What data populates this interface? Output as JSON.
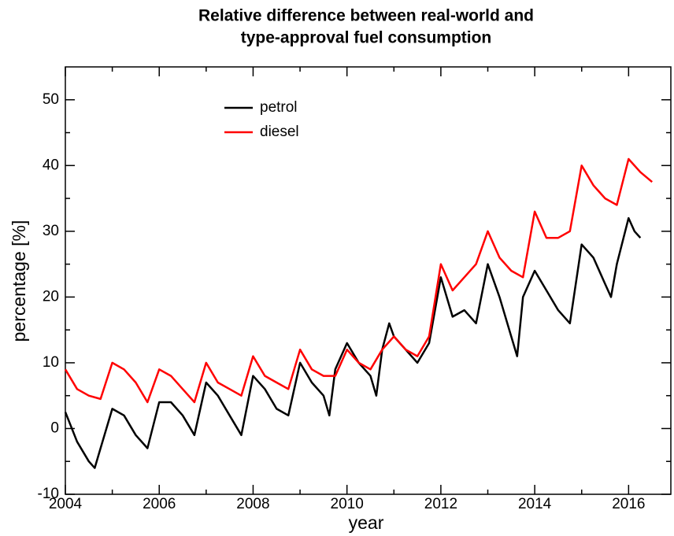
{
  "chart_data": {
    "type": "line",
    "title": [
      "Relative difference between real-world and",
      "type-approval fuel consumption"
    ],
    "xlabel": "year",
    "ylabel": "percentage [%]",
    "xlim": [
      2004,
      2016.9
    ],
    "ylim": [
      -10,
      55
    ],
    "xticks": [
      2004,
      2006,
      2008,
      2010,
      2012,
      2014,
      2016
    ],
    "xminorticks": [
      2005,
      2007,
      2009,
      2011,
      2013,
      2015
    ],
    "yticks": [
      -10,
      0,
      10,
      20,
      30,
      40,
      50
    ],
    "yminorticks": [
      -5,
      5,
      15,
      25,
      35,
      45
    ],
    "legend": "upper left",
    "grid": false,
    "series": [
      {
        "name": "petrol",
        "color": "#000000",
        "x": [
          2004.0,
          2004.25,
          2004.5,
          2004.625,
          2004.75,
          2005.0,
          2005.25,
          2005.5,
          2005.75,
          2006.0,
          2006.25,
          2006.5,
          2006.75,
          2007.0,
          2007.25,
          2007.5,
          2007.75,
          2008.0,
          2008.25,
          2008.5,
          2008.75,
          2009.0,
          2009.25,
          2009.5,
          2009.625,
          2009.75,
          2010.0,
          2010.25,
          2010.5,
          2010.625,
          2010.75,
          2010.9,
          2011.0,
          2011.25,
          2011.5,
          2011.75,
          2012.0,
          2012.25,
          2012.5,
          2012.75,
          2013.0,
          2013.25,
          2013.5,
          2013.625,
          2013.75,
          2014.0,
          2014.25,
          2014.5,
          2014.75,
          2015.0,
          2015.25,
          2015.5,
          2015.625,
          2015.75,
          2016.0,
          2016.125,
          2016.25
        ],
        "values": [
          2.5,
          -2,
          -5,
          -6,
          -3,
          3,
          2,
          -1,
          -3,
          4,
          4,
          2,
          -1,
          7,
          5,
          2,
          -1,
          8,
          6,
          3,
          2,
          10,
          7,
          5,
          2,
          9,
          13,
          10,
          8,
          5,
          12,
          16,
          14,
          12,
          10,
          13,
          23,
          17,
          18,
          16,
          25,
          20,
          14,
          11,
          20,
          24,
          21,
          18,
          16,
          28,
          26,
          22,
          20,
          25,
          32,
          30,
          29
        ]
      },
      {
        "name": "diesel",
        "color": "#ff0000",
        "x": [
          2004.0,
          2004.25,
          2004.5,
          2004.75,
          2005.0,
          2005.25,
          2005.5,
          2005.75,
          2006.0,
          2006.25,
          2006.5,
          2006.75,
          2007.0,
          2007.25,
          2007.5,
          2007.75,
          2008.0,
          2008.25,
          2008.5,
          2008.75,
          2009.0,
          2009.25,
          2009.5,
          2009.75,
          2010.0,
          2010.25,
          2010.5,
          2010.75,
          2011.0,
          2011.25,
          2011.5,
          2011.75,
          2012.0,
          2012.25,
          2012.5,
          2012.75,
          2013.0,
          2013.25,
          2013.5,
          2013.75,
          2014.0,
          2014.25,
          2014.5,
          2014.75,
          2015.0,
          2015.25,
          2015.5,
          2015.75,
          2016.0,
          2016.25,
          2016.5
        ],
        "values": [
          9,
          6,
          5,
          4.5,
          10,
          9,
          7,
          4,
          9,
          8,
          6,
          4,
          10,
          7,
          6,
          5,
          11,
          8,
          7,
          6,
          12,
          9,
          8,
          8,
          12,
          10,
          9,
          12,
          14,
          12,
          11,
          14,
          25,
          21,
          23,
          25,
          30,
          26,
          24,
          23,
          33,
          29,
          29,
          30,
          40,
          37,
          35,
          34,
          41,
          39,
          37.5
        ]
      }
    ]
  }
}
